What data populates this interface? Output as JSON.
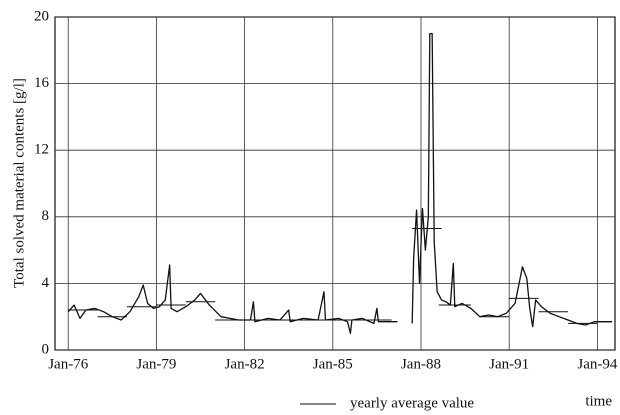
{
  "chart_data": {
    "type": "line",
    "y_label": "Total solved material contents [g/l]",
    "x_label": "time",
    "xlim": [
      1975.55,
      1994.6
    ],
    "xticks": [
      {
        "value": 1976,
        "label": "Jan-76"
      },
      {
        "value": 1979,
        "label": "Jan-79"
      },
      {
        "value": 1982,
        "label": "Jan-82"
      },
      {
        "value": 1985,
        "label": "Jan-85"
      },
      {
        "value": 1988,
        "label": "Jan-88"
      },
      {
        "value": 1991,
        "label": "Jan-91"
      },
      {
        "value": 1994,
        "label": "Jan-94"
      }
    ],
    "ylim": [
      0,
      20
    ],
    "yticks": [
      0,
      4,
      8,
      12,
      16,
      20
    ],
    "grid": true,
    "color": "#111111",
    "x": [
      1976.0,
      1976.2,
      1976.4,
      1976.6,
      1976.9,
      1977.2,
      1977.5,
      1977.8,
      1978.1,
      1978.4,
      1978.55,
      1978.7,
      1978.9,
      1979.1,
      1979.3,
      1979.45,
      1979.5,
      1979.7,
      1980.0,
      1980.3,
      1980.5,
      1980.8,
      1981.2,
      1981.8,
      1982.2,
      1982.3,
      1982.35,
      1982.8,
      1983.2,
      1983.5,
      1983.55,
      1984.0,
      1984.5,
      1984.7,
      1984.75,
      1985.2,
      1985.5,
      1985.6,
      1985.65,
      1986.0,
      1986.4,
      1986.5,
      1986.55,
      1987.2,
      1987.45,
      1987.7,
      1987.75,
      1987.85,
      1987.95,
      1988.05,
      1988.15,
      1988.25,
      1988.3,
      1988.38,
      1988.45,
      1988.55,
      1988.7,
      1988.85,
      1989.0,
      1989.1,
      1989.15,
      1989.4,
      1989.7,
      1990.0,
      1990.3,
      1990.6,
      1990.9,
      1991.2,
      1991.35,
      1991.45,
      1991.6,
      1991.7,
      1991.8,
      1991.9,
      1992.1,
      1992.4,
      1992.7,
      1993.0,
      1993.3,
      1993.6,
      1993.9,
      1994.2,
      1994.5
    ],
    "values": [
      2.3,
      2.7,
      1.9,
      2.4,
      2.5,
      2.3,
      2.0,
      1.8,
      2.3,
      3.2,
      3.9,
      2.8,
      2.5,
      2.6,
      3.0,
      5.1,
      2.5,
      2.3,
      2.6,
      3.0,
      3.4,
      2.7,
      2.0,
      1.8,
      1.8,
      2.9,
      1.7,
      1.9,
      1.8,
      2.4,
      1.7,
      1.9,
      1.8,
      3.5,
      1.8,
      1.9,
      1.7,
      1.0,
      1.8,
      1.9,
      1.6,
      2.5,
      1.7,
      1.7,
      null,
      1.6,
      5.5,
      8.4,
      4.0,
      8.5,
      6.0,
      8.0,
      19.0,
      19.0,
      6.5,
      3.5,
      3.0,
      2.9,
      2.7,
      5.2,
      2.6,
      2.8,
      2.5,
      2.0,
      2.1,
      2.0,
      2.2,
      2.8,
      4.1,
      5.0,
      4.3,
      2.5,
      1.4,
      3.0,
      2.6,
      2.2,
      2.0,
      1.8,
      1.6,
      1.5,
      1.7,
      1.7,
      1.7
    ],
    "averages": {
      "name": "yearly average value",
      "segments": [
        {
          "start": 1976.0,
          "end": 1977.0,
          "value": 2.4
        },
        {
          "start": 1977.0,
          "end": 1978.0,
          "value": 2.0
        },
        {
          "start": 1978.0,
          "end": 1979.0,
          "value": 2.6
        },
        {
          "start": 1979.0,
          "end": 1980.0,
          "value": 2.7
        },
        {
          "start": 1980.0,
          "end": 1981.0,
          "value": 2.9
        },
        {
          "start": 1981.0,
          "end": 1982.0,
          "value": 1.8
        },
        {
          "start": 1982.0,
          "end": 1983.0,
          "value": 1.8
        },
        {
          "start": 1983.0,
          "end": 1984.0,
          "value": 1.8
        },
        {
          "start": 1984.0,
          "end": 1985.0,
          "value": 1.8
        },
        {
          "start": 1985.0,
          "end": 1986.0,
          "value": 1.8
        },
        {
          "start": 1986.0,
          "end": 1987.0,
          "value": 1.8
        },
        {
          "start": 1987.7,
          "end": 1988.7,
          "value": 7.3
        },
        {
          "start": 1988.6,
          "end": 1989.7,
          "value": 2.7
        },
        {
          "start": 1990.0,
          "end": 1991.0,
          "value": 2.0
        },
        {
          "start": 1991.0,
          "end": 1992.0,
          "value": 3.1
        },
        {
          "start": 1992.0,
          "end": 1993.0,
          "value": 2.3
        },
        {
          "start": 1993.0,
          "end": 1994.0,
          "value": 1.6
        },
        {
          "start": 1994.0,
          "end": 1994.5,
          "value": 1.7
        }
      ]
    }
  }
}
